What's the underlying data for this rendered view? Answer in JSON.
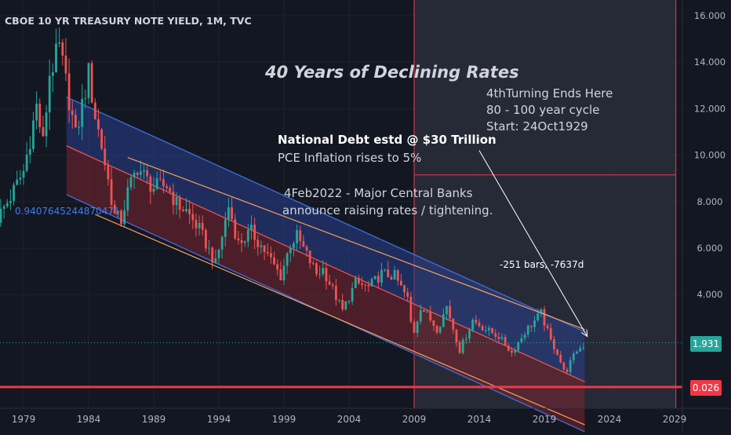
{
  "header": {
    "symbol_title": "CBOE 10 YR TREASURY NOTE YIELD, 1M, TVC"
  },
  "annotations": {
    "main_title": "40 Years of Declining Rates",
    "turning_line1": "4thTurning Ends Here",
    "turning_line2": "80 - 100  year cycle",
    "turning_line3": "Start: 24Oct1929",
    "debt_line1": "National Debt estd @ $30 Trillion",
    "debt_line2": "PCE Inflation rises to 5%",
    "fed_line1": "4Feb2022 - Major Central Banks",
    "fed_line2": "announce raising rates / tightening.",
    "channel_label": "0.9407645244870471",
    "measure_label": "-251 bars, -7637d"
  },
  "price_badges": {
    "last_price": "1.931",
    "support_level": "0.026"
  },
  "colors": {
    "background": "#131722",
    "candle_up": "#26a69a",
    "candle_down": "#ef5350",
    "channel_upper_fill": "#2a3f8f",
    "channel_lower_fill": "#7a2432",
    "channel_line": "#3f6fe0",
    "trend_orange": "#f5a25c",
    "support_red": "#f23645",
    "last_price_green": "#26a69a",
    "range_highlight": "#2a2e39"
  },
  "chart_data": {
    "type": "candlestick",
    "title": "CBOE 10 YR TREASURY NOTE YIELD, 1M, TVC",
    "xlabel": "",
    "ylabel": "",
    "x_ticks": [
      "1979",
      "1984",
      "1989",
      "1994",
      "1999",
      "2004",
      "2009",
      "2014",
      "2019",
      "2024",
      "2029"
    ],
    "y_ticks": [
      "16.000",
      "14.000",
      "12.000",
      "10.000",
      "8.000",
      "6.000",
      "4.000"
    ],
    "xlim": [
      1977.5,
      2031.5
    ],
    "ylim": [
      -0.5,
      16.5
    ],
    "grid": true,
    "series": [
      {
        "name": "",
        "x": [
          1977.0,
          1978.0,
          1979.0,
          1980.0,
          1980.5,
          1981.0,
          1981.75,
          1982.5,
          1983.0,
          1984.0,
          1984.5,
          1985.0,
          1986.0,
          1986.5,
          1987.0,
          1987.75,
          1988.5,
          1989.0,
          1990.0,
          1990.75,
          1991.5,
          1992.5,
          1993.75,
          1994.75,
          1995.5,
          1996.5,
          1997.5,
          1998.75,
          1999.5,
          2000.0,
          2001.5,
          2002.0,
          2003.5,
          2004.5,
          2005.5,
          2006.5,
          2007.5,
          2008.5,
          2008.9,
          2009.5,
          2010.8,
          2011.5,
          2012.5,
          2013.5,
          2014.5,
          2015.5,
          2016.5,
          2017.5,
          2018.75,
          2019.5,
          2020.0,
          2020.6,
          2021.0,
          2021.5,
          2022.0,
          2022.1
        ],
        "y": [
          7.3,
          8.2,
          9.3,
          12.1,
          10.5,
          13.5,
          14.6,
          12.4,
          10.8,
          13.5,
          11.7,
          10.4,
          7.4,
          7.2,
          8.4,
          9.5,
          8.9,
          8.6,
          8.7,
          7.9,
          7.6,
          6.8,
          5.3,
          7.8,
          6.2,
          6.7,
          5.9,
          4.8,
          6.2,
          6.5,
          4.9,
          5.1,
          3.3,
          4.5,
          4.3,
          4.9,
          4.8,
          3.8,
          2.2,
          3.5,
          2.5,
          3.5,
          1.6,
          2.9,
          2.5,
          2.2,
          1.5,
          2.4,
          3.2,
          2.0,
          1.5,
          0.55,
          1.1,
          1.6,
          1.8,
          1.93
        ]
      }
    ],
    "regression_channel": {
      "x_range": [
        1982.3,
        2022.1
      ],
      "upper": [
        12.5,
        2.4
      ],
      "middle": [
        10.4,
        0.25
      ],
      "lower": [
        8.3,
        -1.9
      ],
      "pearson": 0.9407645244870471
    },
    "trend_lines": [
      {
        "x": [
          1987.0,
          2022.1
        ],
        "y": [
          9.9,
          2.5
        ]
      },
      {
        "x": [
          1984.5,
          2022.1
        ],
        "y": [
          7.45,
          -1.6
        ]
      }
    ],
    "vertical_markers": [
      2009.0,
      2029.1
    ],
    "horizontal_levels": [
      9.15,
      0.026
    ],
    "last_price": 1.931,
    "measure": {
      "from": [
        2014.0,
        10.2
      ],
      "to": [
        2022.3,
        2.2
      ]
    }
  }
}
